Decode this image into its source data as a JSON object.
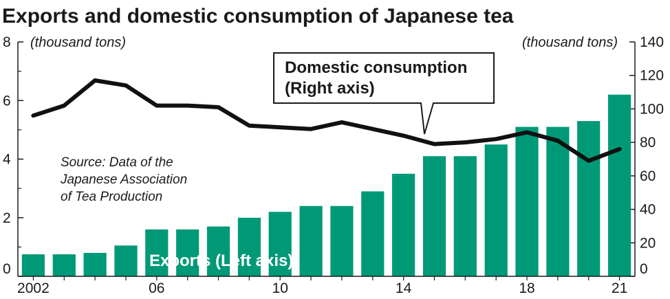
{
  "chart_data": {
    "type": "bar+line",
    "title": "Exports and domestic consumption of Japanese tea",
    "left_axis_unit": "(thousand tons)",
    "right_axis_unit": "(thousand tons)",
    "left_ylim": [
      0,
      8
    ],
    "left_ticks": [
      0,
      2,
      4,
      6,
      8
    ],
    "right_ylim": [
      0,
      140
    ],
    "right_ticks": [
      0,
      20,
      40,
      60,
      80,
      100,
      120,
      140
    ],
    "x": [
      2002,
      2003,
      2004,
      2005,
      2006,
      2007,
      2008,
      2009,
      2010,
      2011,
      2012,
      2013,
      2014,
      2015,
      2016,
      2017,
      2018,
      2019,
      2020,
      2021
    ],
    "x_tick_labels": [
      "2002",
      "06",
      "10",
      "14",
      "18",
      "21"
    ],
    "x_tick_years": [
      2002,
      2006,
      2010,
      2014,
      2018,
      2021
    ],
    "series": [
      {
        "name": "Exports (Left axis)",
        "type": "bar",
        "axis": "left",
        "color": "#009977",
        "values": [
          0.75,
          0.75,
          0.8,
          1.05,
          1.6,
          1.6,
          1.7,
          2.0,
          2.2,
          2.4,
          2.4,
          2.9,
          3.5,
          4.1,
          4.1,
          4.5,
          5.1,
          5.1,
          5.3,
          6.2
        ]
      },
      {
        "name": "Domestic consumption (Right axis)",
        "type": "line",
        "axis": "right",
        "color": "#111111",
        "values": [
          96,
          102,
          117,
          114,
          102,
          102,
          101,
          90,
          89,
          88,
          92,
          88,
          84,
          79,
          80,
          82,
          86,
          81,
          69,
          76
        ]
      }
    ],
    "callout": {
      "line1": "Domestic consumption",
      "line2": "(Right axis)"
    },
    "bar_label": "Exports (Left axis)",
    "source_lines": [
      "Source: Data of the",
      "Japanese Association",
      "of Tea Production"
    ]
  }
}
